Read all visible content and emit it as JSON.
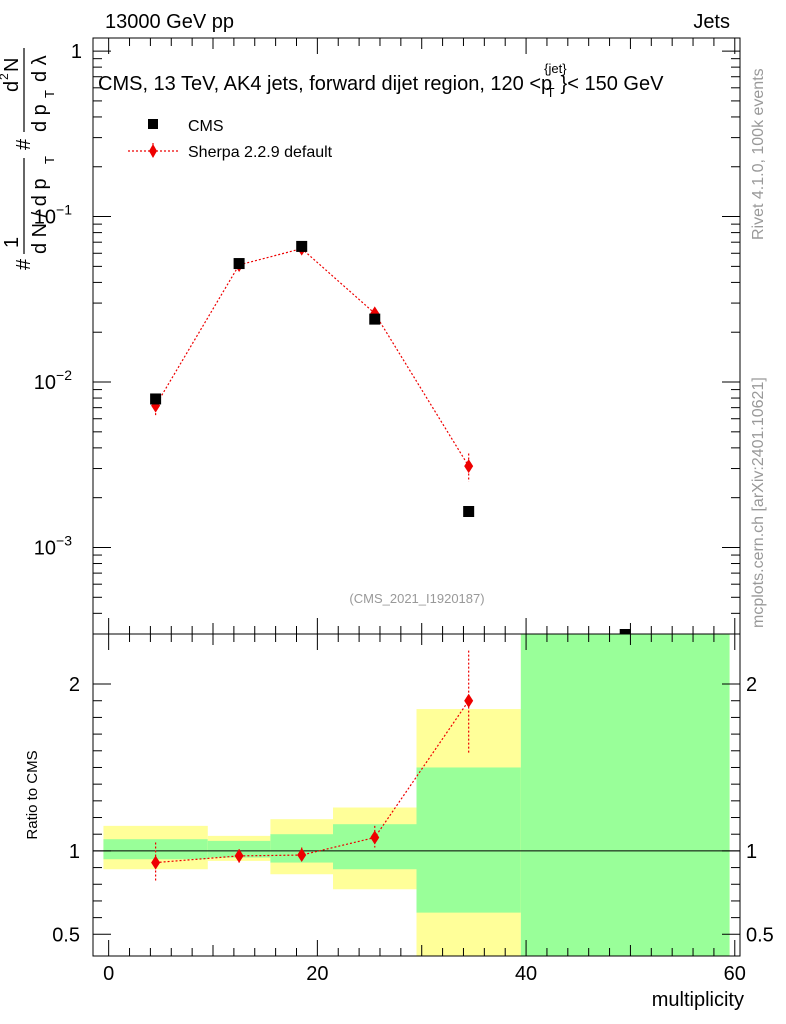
{
  "header": {
    "energy_label": "13000 GeV pp",
    "category_label": "Jets"
  },
  "side_labels": {
    "rivet": "Rivet 4.1.0,  100k events",
    "mcplots": "mcplots.cern.ch [arXiv:2401.10621]"
  },
  "colors": {
    "data": "#000000",
    "mc": "#ee0000",
    "band_inner": "#99ff99",
    "band_outer": "#ffff99"
  },
  "chart_data": [
    {
      "type": "scatter",
      "title": "CMS, 13 TeV, AK4 jets, forward dijet region, 120 <p",
      "title_sup": "{jet}",
      "title_sub": "T",
      "title_tail": "}< 150 GeV",
      "ylabel": "# 1/dN/dp_T # d²N/dp_T dλ",
      "ylabel_parts": [
        "#",
        "1",
        "d N / d p",
        "T",
        "#",
        "d",
        "2",
        "N",
        "d p",
        "T",
        "d λ"
      ],
      "yscale": "log",
      "ylim": [
        0.0003,
        1.2
      ],
      "xlim": [
        -1.5,
        60.5
      ],
      "yticks": [
        {
          "value": 1,
          "label": "1"
        },
        {
          "value": 0.1,
          "label": "10",
          "exp": "−1"
        },
        {
          "value": 0.01,
          "label": "10",
          "exp": "−2"
        },
        {
          "value": 0.001,
          "label": "10",
          "exp": "−3"
        }
      ],
      "legend_position": "top-left",
      "watermark": "(CMS_2021_I1920187)",
      "series": [
        {
          "name": "CMS",
          "marker": "square",
          "points": [
            {
              "x": 4.5,
              "y": 0.0079
            },
            {
              "x": 12.5,
              "y": 0.052
            },
            {
              "x": 18.5,
              "y": 0.066
            },
            {
              "x": 25.5,
              "y": 0.024
            },
            {
              "x": 34.5,
              "y": 0.00165
            },
            {
              "x": 49.5,
              "y": 0.00029
            }
          ]
        },
        {
          "name": "Sherpa 2.2.9 default",
          "marker": "diamond",
          "line": "dotted",
          "points": [
            {
              "x": 4.5,
              "y": 0.0072,
              "err": 0.0009
            },
            {
              "x": 12.5,
              "y": 0.051,
              "err": 0.002
            },
            {
              "x": 18.5,
              "y": 0.064,
              "err": 0.002
            },
            {
              "x": 25.5,
              "y": 0.026,
              "err": 0.0015
            },
            {
              "x": 34.5,
              "y": 0.0031,
              "err": 0.0006
            }
          ]
        }
      ]
    },
    {
      "type": "scatter",
      "xlabel": "multiplicity",
      "ylabel": "Ratio to CMS",
      "ylim": [
        0.37,
        2.3
      ],
      "xlim": [
        -1.5,
        60.5
      ],
      "xticks": [
        0,
        20,
        40,
        60
      ],
      "yticks": [
        {
          "value": 0.5,
          "label": "0.5"
        },
        {
          "value": 1,
          "label": "1"
        },
        {
          "value": 2,
          "label": "2"
        }
      ],
      "bands": [
        {
          "x0": -0.5,
          "x1": 9.5,
          "inner": [
            0.95,
            1.07
          ],
          "outer": [
            0.89,
            1.15
          ]
        },
        {
          "x0": 9.5,
          "x1": 15.5,
          "inner": [
            0.96,
            1.06
          ],
          "outer": [
            0.94,
            1.09
          ]
        },
        {
          "x0": 15.5,
          "x1": 21.5,
          "inner": [
            0.93,
            1.1
          ],
          "outer": [
            0.86,
            1.19
          ]
        },
        {
          "x0": 21.5,
          "x1": 29.5,
          "inner": [
            0.89,
            1.16
          ],
          "outer": [
            0.77,
            1.26
          ]
        },
        {
          "x0": 29.5,
          "x1": 39.5,
          "inner": [
            0.63,
            1.5
          ],
          "outer": [
            0.3,
            1.85
          ]
        },
        {
          "x0": 39.5,
          "x1": 59.5,
          "inner": [
            0.3,
            2.3
          ],
          "outer": [
            0.3,
            2.3
          ]
        }
      ],
      "series": [
        {
          "name": "Sherpa 2.2.9 default",
          "marker": "diamond",
          "line": "dotted",
          "points": [
            {
              "x": 4.5,
              "y": 0.93,
              "lo": 0.82,
              "hi": 1.05
            },
            {
              "x": 12.5,
              "y": 0.97,
              "lo": 0.93,
              "hi": 1.01
            },
            {
              "x": 18.5,
              "y": 0.975,
              "lo": 0.94,
              "hi": 1.02
            },
            {
              "x": 25.5,
              "y": 1.08,
              "lo": 1.02,
              "hi": 1.15
            },
            {
              "x": 34.5,
              "y": 1.9,
              "lo": 1.58,
              "hi": 2.2
            }
          ]
        }
      ]
    }
  ]
}
